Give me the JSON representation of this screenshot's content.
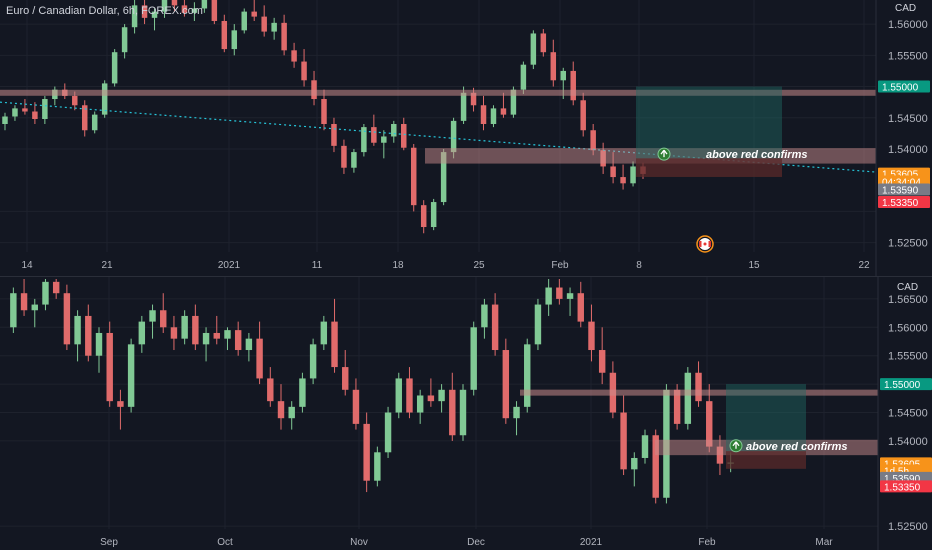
{
  "title": "Euro / Canadian Dollar, 6h, FOREX.com",
  "currency": "CAD",
  "colors": {
    "up": "#81c995",
    "down": "#e06b6b",
    "zone": "#c98b8b",
    "target": "#1f6b63",
    "stop": "#5a2a2a",
    "trend": "#26c6da",
    "price_orange": "#f7931a",
    "price_gray": "#787b86",
    "price_red": "#f23645",
    "price_green": "#089981"
  },
  "icons": {
    "up_arrow": "arrow-up-circle-icon",
    "flag": "canada-flag-icon"
  },
  "chart_data": [
    {
      "type": "candlestick",
      "pane": "top",
      "title": "Euro / Canadian Dollar, 6h, FOREX.com",
      "x_ticks": [
        "14",
        "21",
        "2021",
        "11",
        "18",
        "25",
        "Feb",
        "8",
        "15",
        "22"
      ],
      "y_ticks": [
        "1.56000",
        "1.55500",
        "1.55000",
        "1.54500",
        "1.54000",
        "1.53605",
        "1.53590",
        "1.53350",
        "1.52500"
      ],
      "ylim": [
        1.5235,
        1.5645
      ],
      "price_tags": [
        {
          "label": "1.55000",
          "value": 1.55,
          "color": "#089981"
        },
        {
          "label": "1.53605",
          "value": 1.53605,
          "color": "#f7931a"
        },
        {
          "label": "04:34:04",
          "value": 1.5348,
          "color": "#f7931a"
        },
        {
          "label": "1.53590",
          "value": 1.5335,
          "color": "#787b86"
        },
        {
          "label": "1.53350",
          "value": 1.5315,
          "color": "#f23645"
        }
      ],
      "horizontal_levels": [
        1.549
      ],
      "support_zone": [
        1.5383,
        1.5395
      ],
      "long_position": {
        "entry": 1.5385,
        "target": 1.55,
        "stop": 1.5368
      },
      "annotation": "above red confirms",
      "trendline": {
        "from": [
          0,
          1.5475
        ],
        "to": [
          1,
          1.5363
        ]
      },
      "candles": [
        [
          1.544,
          1.5458,
          1.543,
          1.5452
        ],
        [
          1.5452,
          1.547,
          1.5445,
          1.5465
        ],
        [
          1.5465,
          1.548,
          1.5455,
          1.546
        ],
        [
          1.546,
          1.5475,
          1.544,
          1.5448
        ],
        [
          1.5448,
          1.5485,
          1.544,
          1.548
        ],
        [
          1.548,
          1.55,
          1.547,
          1.5495
        ],
        [
          1.5495,
          1.5505,
          1.548,
          1.5485
        ],
        [
          1.5485,
          1.5492,
          1.5462,
          1.547
        ],
        [
          1.547,
          1.5478,
          1.542,
          1.543
        ],
        [
          1.543,
          1.546,
          1.5425,
          1.5455
        ],
        [
          1.5455,
          1.551,
          1.545,
          1.5505
        ],
        [
          1.5505,
          1.556,
          1.55,
          1.5555
        ],
        [
          1.5555,
          1.56,
          1.5545,
          1.5595
        ],
        [
          1.5595,
          1.564,
          1.5585,
          1.563
        ],
        [
          1.563,
          1.5645,
          1.56,
          1.561
        ],
        [
          1.561,
          1.5625,
          1.559,
          1.562
        ],
        [
          1.562,
          1.5645,
          1.561,
          1.564
        ],
        [
          1.564,
          1.5645,
          1.562,
          1.563
        ],
        [
          1.563,
          1.564,
          1.5612,
          1.5618
        ],
        [
          1.5618,
          1.5635,
          1.5605,
          1.5625
        ],
        [
          1.5625,
          1.5645,
          1.5618,
          1.564
        ],
        [
          1.564,
          1.5645,
          1.56,
          1.5605
        ],
        [
          1.5605,
          1.5615,
          1.5555,
          1.556
        ],
        [
          1.556,
          1.56,
          1.555,
          1.559
        ],
        [
          1.559,
          1.5625,
          1.5585,
          1.562
        ],
        [
          1.562,
          1.5645,
          1.5605,
          1.5612
        ],
        [
          1.5612,
          1.563,
          1.558,
          1.5588
        ],
        [
          1.5588,
          1.561,
          1.5575,
          1.5602
        ],
        [
          1.5602,
          1.5615,
          1.555,
          1.5558
        ],
        [
          1.5558,
          1.557,
          1.553,
          1.554
        ],
        [
          1.554,
          1.556,
          1.55,
          1.551
        ],
        [
          1.551,
          1.5525,
          1.547,
          1.548
        ],
        [
          1.548,
          1.5495,
          1.543,
          1.544
        ],
        [
          1.544,
          1.545,
          1.5395,
          1.5405
        ],
        [
          1.5405,
          1.5415,
          1.536,
          1.537
        ],
        [
          1.537,
          1.54,
          1.5362,
          1.5395
        ],
        [
          1.5395,
          1.544,
          1.5388,
          1.5435
        ],
        [
          1.5435,
          1.5455,
          1.5405,
          1.541
        ],
        [
          1.541,
          1.543,
          1.5385,
          1.542
        ],
        [
          1.542,
          1.5445,
          1.541,
          1.544
        ],
        [
          1.544,
          1.545,
          1.5398,
          1.5402
        ],
        [
          1.5402,
          1.5408,
          1.53,
          1.531
        ],
        [
          1.531,
          1.5318,
          1.5265,
          1.5275
        ],
        [
          1.5275,
          1.532,
          1.527,
          1.5315
        ],
        [
          1.5315,
          1.54,
          1.531,
          1.5395
        ],
        [
          1.5395,
          1.545,
          1.5385,
          1.5445
        ],
        [
          1.5445,
          1.55,
          1.544,
          1.549
        ],
        [
          1.549,
          1.5498,
          1.546,
          1.547
        ],
        [
          1.547,
          1.5485,
          1.543,
          1.544
        ],
        [
          1.544,
          1.547,
          1.5435,
          1.5465
        ],
        [
          1.5465,
          1.549,
          1.545,
          1.5455
        ],
        [
          1.5455,
          1.55,
          1.545,
          1.5495
        ],
        [
          1.5495,
          1.554,
          1.5488,
          1.5535
        ],
        [
          1.5535,
          1.559,
          1.5528,
          1.5585
        ],
        [
          1.5585,
          1.5592,
          1.5548,
          1.5555
        ],
        [
          1.5555,
          1.5575,
          1.55,
          1.551
        ],
        [
          1.551,
          1.553,
          1.548,
          1.5525
        ],
        [
          1.5525,
          1.554,
          1.547,
          1.5478
        ],
        [
          1.5478,
          1.549,
          1.542,
          1.543
        ],
        [
          1.543,
          1.544,
          1.539,
          1.5398
        ],
        [
          1.5398,
          1.541,
          1.536,
          1.5372
        ],
        [
          1.5372,
          1.5395,
          1.5345,
          1.5355
        ],
        [
          1.5355,
          1.5375,
          1.5335,
          1.5345
        ],
        [
          1.5345,
          1.538,
          1.534,
          1.5372
        ],
        [
          1.5372,
          1.5378,
          1.5352,
          1.536
        ]
      ]
    },
    {
      "type": "candlestick",
      "pane": "bottom",
      "x_ticks": [
        "Sep",
        "Oct",
        "Nov",
        "Dec",
        "2021",
        "Feb",
        "Mar"
      ],
      "y_ticks": [
        "1.56500",
        "1.56000",
        "1.55500",
        "1.55000",
        "1.54500",
        "1.54000",
        "1.53605",
        "1.53590",
        "1.53350",
        "1.52500"
      ],
      "ylim": [
        1.5245,
        1.5685
      ],
      "price_tags": [
        {
          "label": "1.55000",
          "value": 1.55,
          "color": "#089981"
        },
        {
          "label": "1.53605",
          "value": 1.53605,
          "color": "#f7931a"
        },
        {
          "label": "1d 5h",
          "value": 1.5348,
          "color": "#f7931a"
        },
        {
          "label": "1.53590",
          "value": 1.5335,
          "color": "#787b86"
        },
        {
          "label": "1.53350",
          "value": 1.532,
          "color": "#f23645"
        }
      ],
      "horizontal_levels": [
        1.5485
      ],
      "support_zone": [
        1.5382,
        1.5395
      ],
      "long_position": {
        "entry": 1.5382,
        "target": 1.55,
        "stop": 1.5365
      },
      "annotation": "above red confirms",
      "candles": [
        [
          1.56,
          1.567,
          1.559,
          1.566
        ],
        [
          1.566,
          1.5685,
          1.562,
          1.563
        ],
        [
          1.563,
          1.565,
          1.56,
          1.564
        ],
        [
          1.564,
          1.5685,
          1.563,
          1.568
        ],
        [
          1.568,
          1.5685,
          1.565,
          1.566
        ],
        [
          1.566,
          1.5675,
          1.556,
          1.557
        ],
        [
          1.557,
          1.563,
          1.554,
          1.562
        ],
        [
          1.562,
          1.564,
          1.554,
          1.555
        ],
        [
          1.555,
          1.56,
          1.552,
          1.559
        ],
        [
          1.559,
          1.561,
          1.546,
          1.547
        ],
        [
          1.547,
          1.549,
          1.542,
          1.546
        ],
        [
          1.546,
          1.558,
          1.545,
          1.557
        ],
        [
          1.557,
          1.562,
          1.5555,
          1.561
        ],
        [
          1.561,
          1.564,
          1.558,
          1.563
        ],
        [
          1.563,
          1.566,
          1.559,
          1.56
        ],
        [
          1.56,
          1.562,
          1.556,
          1.558
        ],
        [
          1.558,
          1.563,
          1.557,
          1.562
        ],
        [
          1.562,
          1.564,
          1.556,
          1.557
        ],
        [
          1.557,
          1.56,
          1.554,
          1.559
        ],
        [
          1.559,
          1.562,
          1.557,
          1.558
        ],
        [
          1.558,
          1.56,
          1.556,
          1.5595
        ],
        [
          1.5595,
          1.561,
          1.555,
          1.556
        ],
        [
          1.556,
          1.559,
          1.554,
          1.558
        ],
        [
          1.558,
          1.561,
          1.55,
          1.551
        ],
        [
          1.551,
          1.553,
          1.546,
          1.547
        ],
        [
          1.547,
          1.55,
          1.542,
          1.544
        ],
        [
          1.544,
          1.547,
          1.542,
          1.546
        ],
        [
          1.546,
          1.552,
          1.545,
          1.551
        ],
        [
          1.551,
          1.558,
          1.55,
          1.557
        ],
        [
          1.557,
          1.562,
          1.556,
          1.561
        ],
        [
          1.561,
          1.565,
          1.552,
          1.553
        ],
        [
          1.553,
          1.556,
          1.548,
          1.549
        ],
        [
          1.549,
          1.551,
          1.542,
          1.543
        ],
        [
          1.543,
          1.545,
          1.531,
          1.533
        ],
        [
          1.533,
          1.539,
          1.532,
          1.538
        ],
        [
          1.538,
          1.546,
          1.537,
          1.545
        ],
        [
          1.545,
          1.552,
          1.544,
          1.551
        ],
        [
          1.551,
          1.553,
          1.544,
          1.545
        ],
        [
          1.545,
          1.549,
          1.543,
          1.548
        ],
        [
          1.548,
          1.551,
          1.546,
          1.547
        ],
        [
          1.547,
          1.55,
          1.545,
          1.549
        ],
        [
          1.549,
          1.552,
          1.54,
          1.541
        ],
        [
          1.541,
          1.55,
          1.54,
          1.549
        ],
        [
          1.549,
          1.561,
          1.548,
          1.56
        ],
        [
          1.56,
          1.565,
          1.558,
          1.564
        ],
        [
          1.564,
          1.566,
          1.555,
          1.556
        ],
        [
          1.556,
          1.558,
          1.543,
          1.544
        ],
        [
          1.544,
          1.547,
          1.541,
          1.546
        ],
        [
          1.546,
          1.558,
          1.545,
          1.557
        ],
        [
          1.557,
          1.565,
          1.556,
          1.564
        ],
        [
          1.564,
          1.5685,
          1.562,
          1.567
        ],
        [
          1.567,
          1.5685,
          1.564,
          1.565
        ],
        [
          1.565,
          1.567,
          1.562,
          1.566
        ],
        [
          1.566,
          1.568,
          1.56,
          1.561
        ],
        [
          1.561,
          1.564,
          1.554,
          1.556
        ],
        [
          1.556,
          1.56,
          1.55,
          1.552
        ],
        [
          1.552,
          1.554,
          1.544,
          1.545
        ],
        [
          1.545,
          1.548,
          1.534,
          1.535
        ],
        [
          1.535,
          1.538,
          1.532,
          1.537
        ],
        [
          1.537,
          1.542,
          1.536,
          1.541
        ],
        [
          1.541,
          1.542,
          1.529,
          1.53
        ],
        [
          1.53,
          1.55,
          1.529,
          1.549
        ],
        [
          1.549,
          1.55,
          1.542,
          1.543
        ],
        [
          1.543,
          1.553,
          1.542,
          1.552
        ],
        [
          1.552,
          1.554,
          1.546,
          1.547
        ],
        [
          1.547,
          1.55,
          1.538,
          1.539
        ],
        [
          1.539,
          1.541,
          1.534,
          1.536
        ],
        [
          1.536,
          1.538,
          1.5345,
          1.5362
        ]
      ]
    }
  ]
}
